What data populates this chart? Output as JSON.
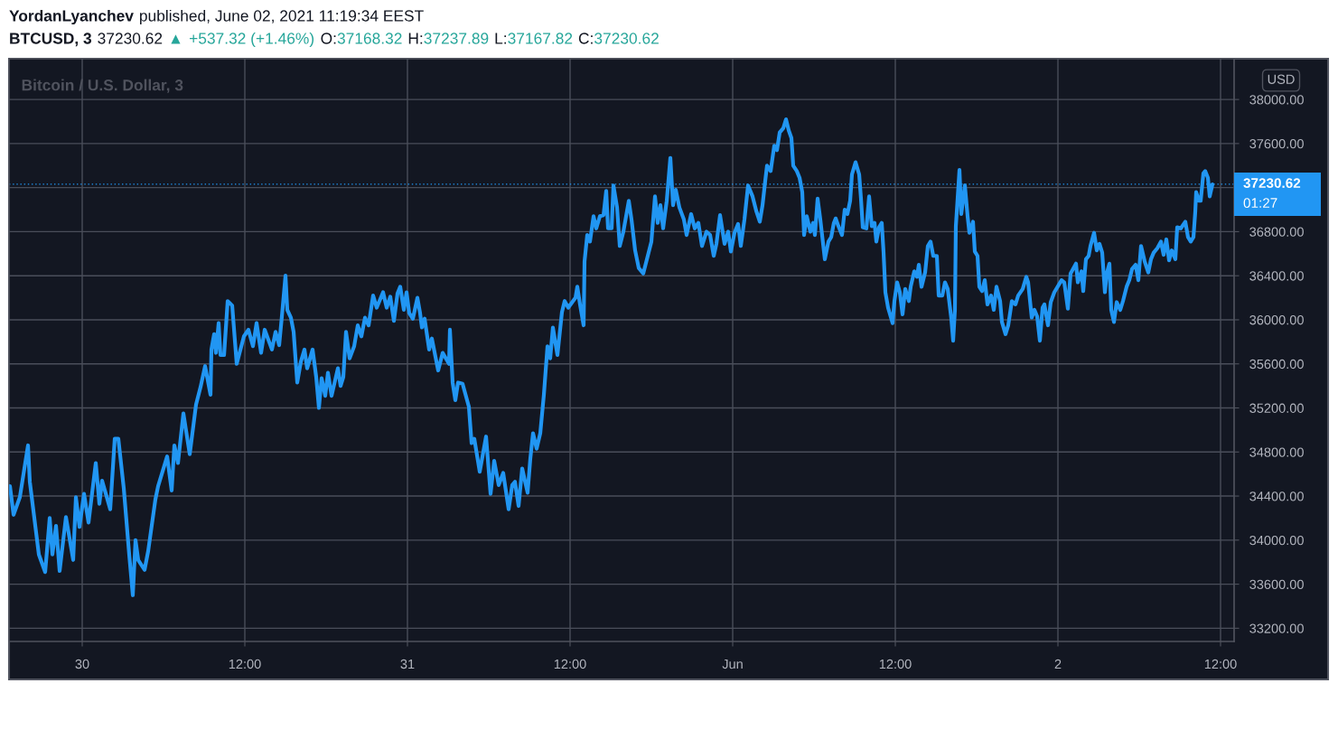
{
  "chart_data": {
    "type": "line",
    "title": "Bitcoin / U.S. Dollar, 3",
    "ylabel": "USD",
    "annotations": [
      "YordanLyanchev",
      "published, June 02, 2021 11:19:34 EEST",
      "BTCUSD, 3",
      "37230.62",
      "▲",
      "+537.32 (+1.46%)",
      "O:",
      "37168.32",
      "H:",
      "37237.89",
      "L:",
      "37167.82",
      "C:",
      "37230.62",
      "01:27"
    ],
    "x": [
      "2021-05-29T18:40",
      "2021-05-29T18:56",
      "2021-05-29T19:24",
      "2021-05-29T20:00",
      "2021-05-29T20:08",
      "2021-05-29T20:48",
      "2021-05-29T21:16",
      "2021-05-29T21:36",
      "2021-05-29T21:48",
      "2021-05-29T22:04",
      "2021-05-29T22:20",
      "2021-05-29T22:48",
      "2021-05-29T23:20",
      "2021-05-29T23:32",
      "2021-05-29T23:48",
      "2021-05-30T00:08",
      "2021-05-30T00:28",
      "2021-05-30T01:00",
      "2021-05-30T01:16",
      "2021-05-30T01:28",
      "2021-05-30T02:04",
      "2021-05-30T02:24",
      "2021-05-30T02:40",
      "2021-05-30T03:04",
      "2021-05-30T03:28",
      "2021-05-30T03:44",
      "2021-05-30T03:56",
      "2021-05-30T04:08",
      "2021-05-30T04:36",
      "2021-05-30T04:52",
      "2021-05-30T05:24",
      "2021-05-30T05:36",
      "2021-05-30T06:16",
      "2021-05-30T06:36",
      "2021-05-30T06:48",
      "2021-05-30T07:04",
      "2021-05-30T07:28",
      "2021-05-30T07:56",
      "2021-05-30T08:24",
      "2021-05-30T08:44",
      "2021-05-30T09:04",
      "2021-05-30T09:28",
      "2021-05-30T09:32",
      "2021-05-30T09:44",
      "2021-05-30T09:52",
      "2021-05-30T10:04",
      "2021-05-30T10:12",
      "2021-05-30T10:28",
      "2021-05-30T10:44",
      "2021-05-30T11:04",
      "2021-05-30T11:24",
      "2021-05-30T11:56",
      "2021-05-30T12:16",
      "2021-05-30T12:36",
      "2021-05-30T12:52",
      "2021-05-30T13:12",
      "2021-05-30T13:28",
      "2021-05-30T14:00",
      "2021-05-30T14:16",
      "2021-05-30T14:32",
      "2021-05-30T14:44",
      "2021-05-30T15:00",
      "2021-05-30T15:08",
      "2021-05-30T15:24",
      "2021-05-30T15:36",
      "2021-05-30T15:52",
      "2021-05-30T16:08",
      "2021-05-30T16:24",
      "2021-05-30T16:36",
      "2021-05-30T17:00",
      "2021-05-30T17:16",
      "2021-05-30T17:28",
      "2021-05-30T17:40",
      "2021-05-30T17:56",
      "2021-05-30T18:08",
      "2021-05-30T18:24",
      "2021-05-30T18:52",
      "2021-05-30T19:04",
      "2021-05-30T19:16",
      "2021-05-30T19:28",
      "2021-05-30T19:44",
      "2021-05-30T20:04",
      "2021-05-30T20:20",
      "2021-05-30T20:36",
      "2021-05-30T20:52",
      "2021-05-30T21:08",
      "2021-05-30T21:28",
      "2021-05-30T21:44",
      "2021-05-30T22:12",
      "2021-05-30T22:28",
      "2021-05-30T22:44",
      "2021-05-30T23:00",
      "2021-05-30T23:16",
      "2021-05-30T23:28",
      "2021-05-30T23:44",
      "2021-05-30T23:56",
      "2021-05-31T00:08",
      "2021-05-31T00:24",
      "2021-05-31T00:44",
      "2021-05-31T00:56",
      "2021-05-31T01:04",
      "2021-05-31T01:16",
      "2021-05-31T01:36",
      "2021-05-31T01:48",
      "2021-05-31T02:16",
      "2021-05-31T02:36",
      "2021-05-31T03:04",
      "2021-05-31T03:08",
      "2021-05-31T03:20",
      "2021-05-31T03:32",
      "2021-05-31T03:44",
      "2021-05-31T04:04",
      "2021-05-31T04:32",
      "2021-05-31T04:44",
      "2021-05-31T04:56",
      "2021-05-31T05:20",
      "2021-05-31T05:48",
      "2021-05-31T06:08",
      "2021-05-31T06:24",
      "2021-05-31T06:44",
      "2021-05-31T07:04",
      "2021-05-31T07:28",
      "2021-05-31T07:44",
      "2021-05-31T07:56",
      "2021-05-31T08:12",
      "2021-05-31T08:28",
      "2021-05-31T08:52",
      "2021-05-31T09:04",
      "2021-05-31T09:16",
      "2021-05-31T09:32",
      "2021-05-31T09:48",
      "2021-05-31T10:04",
      "2021-05-31T10:20",
      "2021-05-31T10:32",
      "2021-05-31T10:44",
      "2021-05-31T11:04",
      "2021-05-31T11:24",
      "2021-05-31T11:36",
      "2021-05-31T11:52",
      "2021-05-31T12:24",
      "2021-05-31T12:32",
      "2021-05-31T12:44",
      "2021-05-31T13:00",
      "2021-05-31T13:04",
      "2021-05-31T13:16",
      "2021-05-31T13:28",
      "2021-05-31T13:44",
      "2021-05-31T13:56",
      "2021-05-31T14:12",
      "2021-05-31T14:28",
      "2021-05-31T14:40",
      "2021-05-31T14:48",
      "2021-05-31T15:04",
      "2021-05-31T15:12",
      "2021-05-31T15:28",
      "2021-05-31T15:40",
      "2021-05-31T15:56",
      "2021-05-31T16:20",
      "2021-05-31T16:32",
      "2021-05-31T16:48",
      "2021-05-31T17:04",
      "2021-05-31T17:24",
      "2021-05-31T17:44",
      "2021-05-31T18:00",
      "2021-05-31T18:16",
      "2021-05-31T18:28",
      "2021-05-31T18:40",
      "2021-05-31T18:52",
      "2021-05-31T19:08",
      "2021-05-31T19:24",
      "2021-05-31T19:36",
      "2021-05-31T19:48",
      "2021-05-31T20:04",
      "2021-05-31T20:24",
      "2021-05-31T20:36",
      "2021-05-31T20:56",
      "2021-05-31T21:12",
      "2021-05-31T21:28",
      "2021-05-31T21:44",
      "2021-05-31T22:04",
      "2021-05-31T22:20",
      "2021-05-31T22:36",
      "2021-05-31T22:48",
      "2021-05-31T23:04",
      "2021-05-31T23:24",
      "2021-05-31T23:40",
      "2021-05-31T23:52",
      "2021-06-01T00:08",
      "2021-06-01T00:24",
      "2021-06-01T00:36",
      "2021-06-01T00:52",
      "2021-06-01T01:08",
      "2021-06-01T01:28",
      "2021-06-01T01:44",
      "2021-06-01T02:00",
      "2021-06-01T02:12",
      "2021-06-01T02:24",
      "2021-06-01T02:32",
      "2021-06-01T02:48",
      "2021-06-01T03:04",
      "2021-06-01T03:16",
      "2021-06-01T03:28",
      "2021-06-01T03:44",
      "2021-06-01T03:56",
      "2021-06-01T04:08",
      "2021-06-01T04:20",
      "2021-06-01T04:28",
      "2021-06-01T04:44",
      "2021-06-01T04:56",
      "2021-06-01T05:08",
      "2021-06-01T05:16",
      "2021-06-01T05:28",
      "2021-06-01T05:44",
      "2021-06-01T05:56",
      "2021-06-01T06:04",
      "2021-06-01T06:16",
      "2021-06-01T06:28",
      "2021-06-01T06:48",
      "2021-06-01T07:04",
      "2021-06-01T07:16",
      "2021-06-01T07:28",
      "2021-06-01T07:36",
      "2021-06-01T07:48",
      "2021-06-01T08:04",
      "2021-06-01T08:16",
      "2021-06-01T08:28",
      "2021-06-01T08:40",
      "2021-06-01T08:48",
      "2021-06-01T09:04",
      "2021-06-01T09:20",
      "2021-06-01T09:28",
      "2021-06-01T09:36",
      "2021-06-01T09:52",
      "2021-06-01T10:04",
      "2021-06-01T10:16",
      "2021-06-01T10:28",
      "2021-06-01T10:36",
      "2021-06-01T10:48",
      "2021-06-01T11:00",
      "2021-06-01T11:08",
      "2021-06-01T11:16",
      "2021-06-01T11:28",
      "2021-06-01T11:48",
      "2021-06-01T11:56",
      "2021-06-01T12:08",
      "2021-06-01T12:20",
      "2021-06-01T12:32",
      "2021-06-01T12:44",
      "2021-06-01T13:00",
      "2021-06-01T13:08",
      "2021-06-01T13:24",
      "2021-06-01T13:36",
      "2021-06-01T13:44",
      "2021-06-01T13:56",
      "2021-06-01T14:12",
      "2021-06-01T14:24",
      "2021-06-01T14:36",
      "2021-06-01T14:48",
      "2021-06-01T15:04",
      "2021-06-01T15:12",
      "2021-06-01T15:28",
      "2021-06-01T15:40",
      "2021-06-01T15:52",
      "2021-06-01T16:08",
      "2021-06-01T16:16",
      "2021-06-01T16:24",
      "2021-06-01T16:28",
      "2021-06-01T16:44",
      "2021-06-01T16:52",
      "2021-06-01T17:08",
      "2021-06-01T17:20",
      "2021-06-01T17:28",
      "2021-06-01T17:44",
      "2021-06-01T17:52",
      "2021-06-01T18:04",
      "2021-06-01T18:12",
      "2021-06-01T18:24",
      "2021-06-01T18:36",
      "2021-06-01T18:48",
      "2021-06-01T19:04",
      "2021-06-01T19:16",
      "2021-06-01T19:28",
      "2021-06-01T19:44",
      "2021-06-01T19:52",
      "2021-06-01T20:08",
      "2021-06-01T20:20",
      "2021-06-01T20:36",
      "2021-06-01T20:52",
      "2021-06-01T21:04",
      "2021-06-01T21:24",
      "2021-06-01T21:40",
      "2021-06-01T21:48",
      "2021-06-01T22:04",
      "2021-06-01T22:16",
      "2021-06-01T22:28",
      "2021-06-01T22:40",
      "2021-06-01T22:52",
      "2021-06-01T23:00",
      "2021-06-01T23:16",
      "2021-06-01T23:28",
      "2021-06-01T23:44",
      "2021-06-02T00:16",
      "2021-06-02T00:28",
      "2021-06-02T00:44",
      "2021-06-02T00:56",
      "2021-06-02T01:20",
      "2021-06-02T01:28",
      "2021-06-02T01:44",
      "2021-06-02T01:52",
      "2021-06-02T02:04",
      "2021-06-02T02:16",
      "2021-06-02T02:24",
      "2021-06-02T02:40",
      "2021-06-02T02:52",
      "2021-06-02T03:04",
      "2021-06-02T03:16",
      "2021-06-02T03:28",
      "2021-06-02T03:36",
      "2021-06-02T03:48",
      "2021-06-02T03:56",
      "2021-06-02T04:08",
      "2021-06-02T04:20",
      "2021-06-02T04:36",
      "2021-06-02T04:48",
      "2021-06-02T05:04",
      "2021-06-02T05:16",
      "2021-06-02T05:28",
      "2021-06-02T05:44",
      "2021-06-02T05:56",
      "2021-06-02T06:08",
      "2021-06-02T06:24",
      "2021-06-02T06:40",
      "2021-06-02T06:52",
      "2021-06-02T07:04",
      "2021-06-02T07:20",
      "2021-06-02T07:36",
      "2021-06-02T07:48",
      "2021-06-02T08:00",
      "2021-06-02T08:12",
      "2021-06-02T08:24",
      "2021-06-02T08:40",
      "2021-06-02T08:48",
      "2021-06-02T09:04",
      "2021-06-02T09:24",
      "2021-06-02T09:36",
      "2021-06-02T09:48",
      "2021-06-02T10:00",
      "2021-06-02T10:08",
      "2021-06-02T10:12",
      "2021-06-02T10:24",
      "2021-06-02T10:32",
      "2021-06-02T10:44",
      "2021-06-02T10:52",
      "2021-06-02T11:04",
      "2021-06-02T11:12",
      "2021-06-02T11:24"
    ],
    "series": [
      {
        "color": "#2196f3",
        "values": [
          34490,
          34230,
          34390,
          34860,
          34530,
          33870,
          33710,
          34200,
          33870,
          34130,
          33720,
          34210,
          33820,
          34390,
          34120,
          34420,
          34160,
          34700,
          34330,
          34540,
          34280,
          34920,
          34920,
          34470,
          33870,
          33500,
          34000,
          33820,
          33730,
          33900,
          34370,
          34490,
          34760,
          34450,
          34860,
          34700,
          35150,
          34780,
          35230,
          35390,
          35580,
          35320,
          35730,
          35870,
          35700,
          35970,
          35680,
          35680,
          36170,
          36130,
          35600,
          35850,
          35910,
          35760,
          35970,
          35700,
          35910,
          35730,
          35890,
          35770,
          36030,
          36400,
          36090,
          36020,
          35890,
          35430,
          35620,
          35730,
          35560,
          35730,
          35480,
          35200,
          35470,
          35310,
          35520,
          35310,
          35560,
          35400,
          35480,
          35890,
          35650,
          35760,
          35950,
          35850,
          36020,
          35950,
          36220,
          36110,
          36250,
          36110,
          36210,
          35990,
          36240,
          36300,
          36090,
          36250,
          36060,
          36010,
          36200,
          36060,
          35930,
          36010,
          35730,
          35830,
          35540,
          35700,
          35600,
          35910,
          35430,
          35270,
          35430,
          35420,
          35210,
          34880,
          34920,
          34620,
          34940,
          34420,
          34720,
          34500,
          34610,
          34280,
          34500,
          34530,
          34310,
          34650,
          34430,
          34740,
          34970,
          34830,
          34970,
          35320,
          35760,
          35650,
          35930,
          35680,
          36070,
          36170,
          36110,
          36200,
          36300,
          36140,
          35950,
          36530,
          36770,
          36710,
          36940,
          36830,
          36940,
          36950,
          37170,
          36830,
          36830,
          37220,
          37020,
          36670,
          36800,
          37080,
          36910,
          36630,
          36470,
          36420,
          36580,
          36710,
          37120,
          36880,
          37040,
          36830,
          37080,
          37470,
          37040,
          37180,
          37020,
          36910,
          36770,
          36960,
          36830,
          36880,
          36670,
          36800,
          36770,
          36580,
          36690,
          36950,
          36690,
          36800,
          36620,
          36790,
          36870,
          36670,
          36910,
          37220,
          37120,
          36990,
          36890,
          37040,
          37260,
          37400,
          37350,
          37580,
          37540,
          37700,
          37740,
          37820,
          37720,
          37650,
          37400,
          37350,
          37290,
          37160,
          36770,
          36940,
          36800,
          36880,
          36770,
          37100,
          36910,
          36550,
          36710,
          36750,
          36880,
          36920,
          36850,
          36770,
          37000,
          36960,
          37080,
          37320,
          37430,
          37320,
          37100,
          36840,
          36830,
          37120,
          36850,
          36880,
          36710,
          36840,
          36880,
          36610,
          36250,
          36110,
          35970,
          36170,
          36340,
          36250,
          36050,
          36280,
          36170,
          36300,
          36440,
          36390,
          36500,
          36300,
          36430,
          36670,
          36710,
          36580,
          36580,
          36220,
          36220,
          36340,
          36280,
          36010,
          35810,
          36090,
          36850,
          37360,
          36960,
          37220,
          36940,
          36790,
          36890,
          36620,
          36580,
          36300,
          36260,
          36360,
          36140,
          36220,
          36090,
          36300,
          36170,
          35980,
          35870,
          35950,
          36170,
          36140,
          36220,
          36280,
          36390,
          36340,
          36020,
          36090,
          36030,
          35810,
          36110,
          36140,
          35950,
          36160,
          36250,
          36360,
          36340,
          36100,
          36420,
          36510,
          36340,
          36440,
          36260,
          36550,
          36580,
          36670,
          36790,
          36630,
          36690,
          36610,
          36250,
          36420,
          36510,
          36090,
          35980,
          36160,
          36090,
          36170,
          36300,
          36360,
          36460,
          36500,
          36360,
          36670,
          36530,
          36430,
          36550,
          36610,
          36650,
          36710,
          36590,
          36730,
          36540,
          36630,
          36550,
          36840,
          36830,
          36890,
          36750,
          36710,
          36750,
          36980,
          37160,
          37080,
          37080,
          37330,
          37350,
          37290,
          37120,
          37230
        ]
      }
    ],
    "xlim": [
      "2021-05-29T18:36",
      "2021-06-02T13:00"
    ],
    "xticks": [
      {
        "value": "2021-05-30",
        "label": "30"
      },
      {
        "value": "2021-05-30T12:00",
        "label": "12:00"
      },
      {
        "value": "2021-05-31",
        "label": "31"
      },
      {
        "value": "2021-05-31T12:00",
        "label": "12:00"
      },
      {
        "value": "2021-06-01",
        "label": "Jun"
      },
      {
        "value": "2021-06-01T12:00",
        "label": "12:00"
      },
      {
        "value": "2021-06-02",
        "label": "2"
      },
      {
        "value": "2021-06-02T12:00",
        "label": "12:00"
      }
    ],
    "ylim": [
      33080,
      38370
    ],
    "yticks": [
      {
        "value": 33200,
        "label": "33200.00"
      },
      {
        "value": 33600,
        "label": "33600.00"
      },
      {
        "value": 34000,
        "label": "34000.00"
      },
      {
        "value": 34400,
        "label": "34400.00"
      },
      {
        "value": 34800,
        "label": "34800.00"
      },
      {
        "value": 35200,
        "label": "35200.00"
      },
      {
        "value": 35600,
        "label": "35600.00"
      },
      {
        "value": 36000,
        "label": "36000.00"
      },
      {
        "value": 36400,
        "label": "36400.00"
      },
      {
        "value": 36800,
        "label": "36800.00"
      },
      {
        "value": 37200,
        "label": null
      },
      {
        "value": 37600,
        "label": "37600.00"
      },
      {
        "value": 38000,
        "label": "38000.00"
      }
    ],
    "grid": true,
    "ref_lines": [
      {
        "axis": "y",
        "value": 37230.62,
        "label": "37230.62",
        "color": "#2196f3",
        "line_style": "dotted"
      }
    ]
  }
}
